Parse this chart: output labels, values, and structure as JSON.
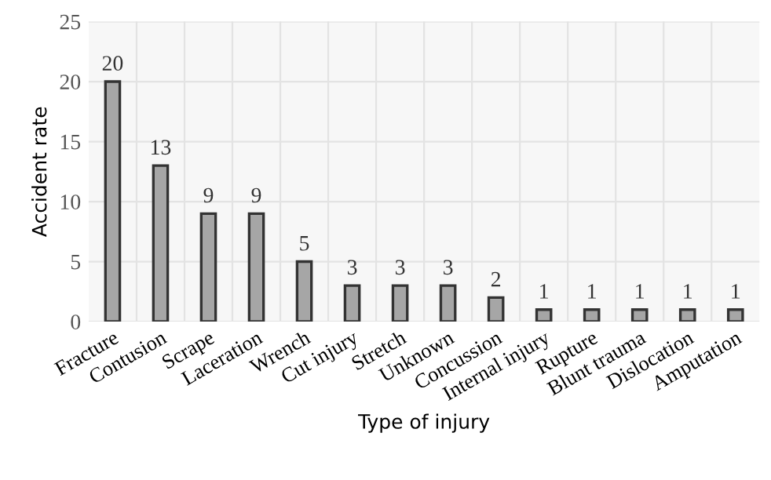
{
  "chart_data": {
    "type": "bar",
    "xlabel": "Type of injury",
    "ylabel": "Accident rate",
    "categories": [
      "Fracture",
      "Contusion",
      "Scrape",
      "Laceration",
      "Wrench",
      "Cut injury",
      "Stretch",
      "Unknown",
      "Concussion",
      "Internal injury",
      "Rupture",
      "Blunt trauma",
      "Dislocation",
      "Amputation"
    ],
    "values": [
      20,
      13,
      9,
      9,
      5,
      3,
      3,
      3,
      2,
      1,
      1,
      1,
      1,
      1
    ],
    "color": "#a6a6a6",
    "ylim": [
      0,
      25
    ],
    "yticks": [
      0,
      5,
      10,
      15,
      20,
      25
    ],
    "grid": true,
    "data_labels": true
  }
}
